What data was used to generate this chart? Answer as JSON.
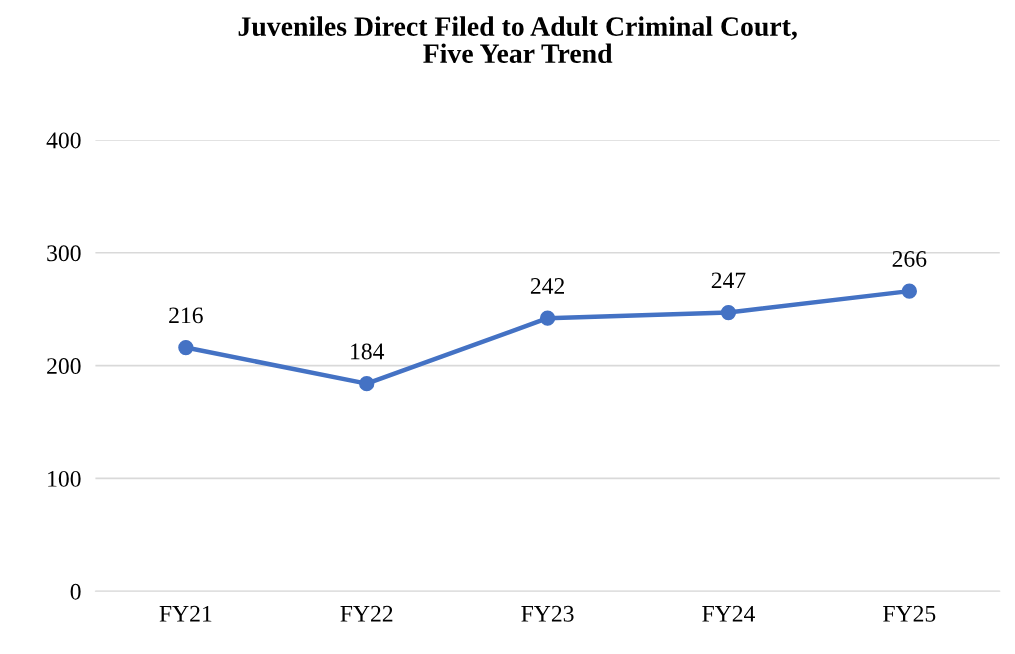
{
  "chart_data": {
    "type": "line",
    "title": "Juveniles Direct Filed to Adult Criminal Court,\nFive Year Trend",
    "categories": [
      "FY21",
      "FY22",
      "FY23",
      "FY24",
      "FY25"
    ],
    "series": [
      {
        "color": "#4472c4",
        "values": [
          216,
          184,
          242,
          247,
          266
        ]
      }
    ],
    "ylim": [
      0,
      400
    ],
    "yticks": [
      0,
      100,
      200,
      300,
      400
    ],
    "grid": "y",
    "marker": "circle",
    "line_style": "solid",
    "data_labels": true
  }
}
